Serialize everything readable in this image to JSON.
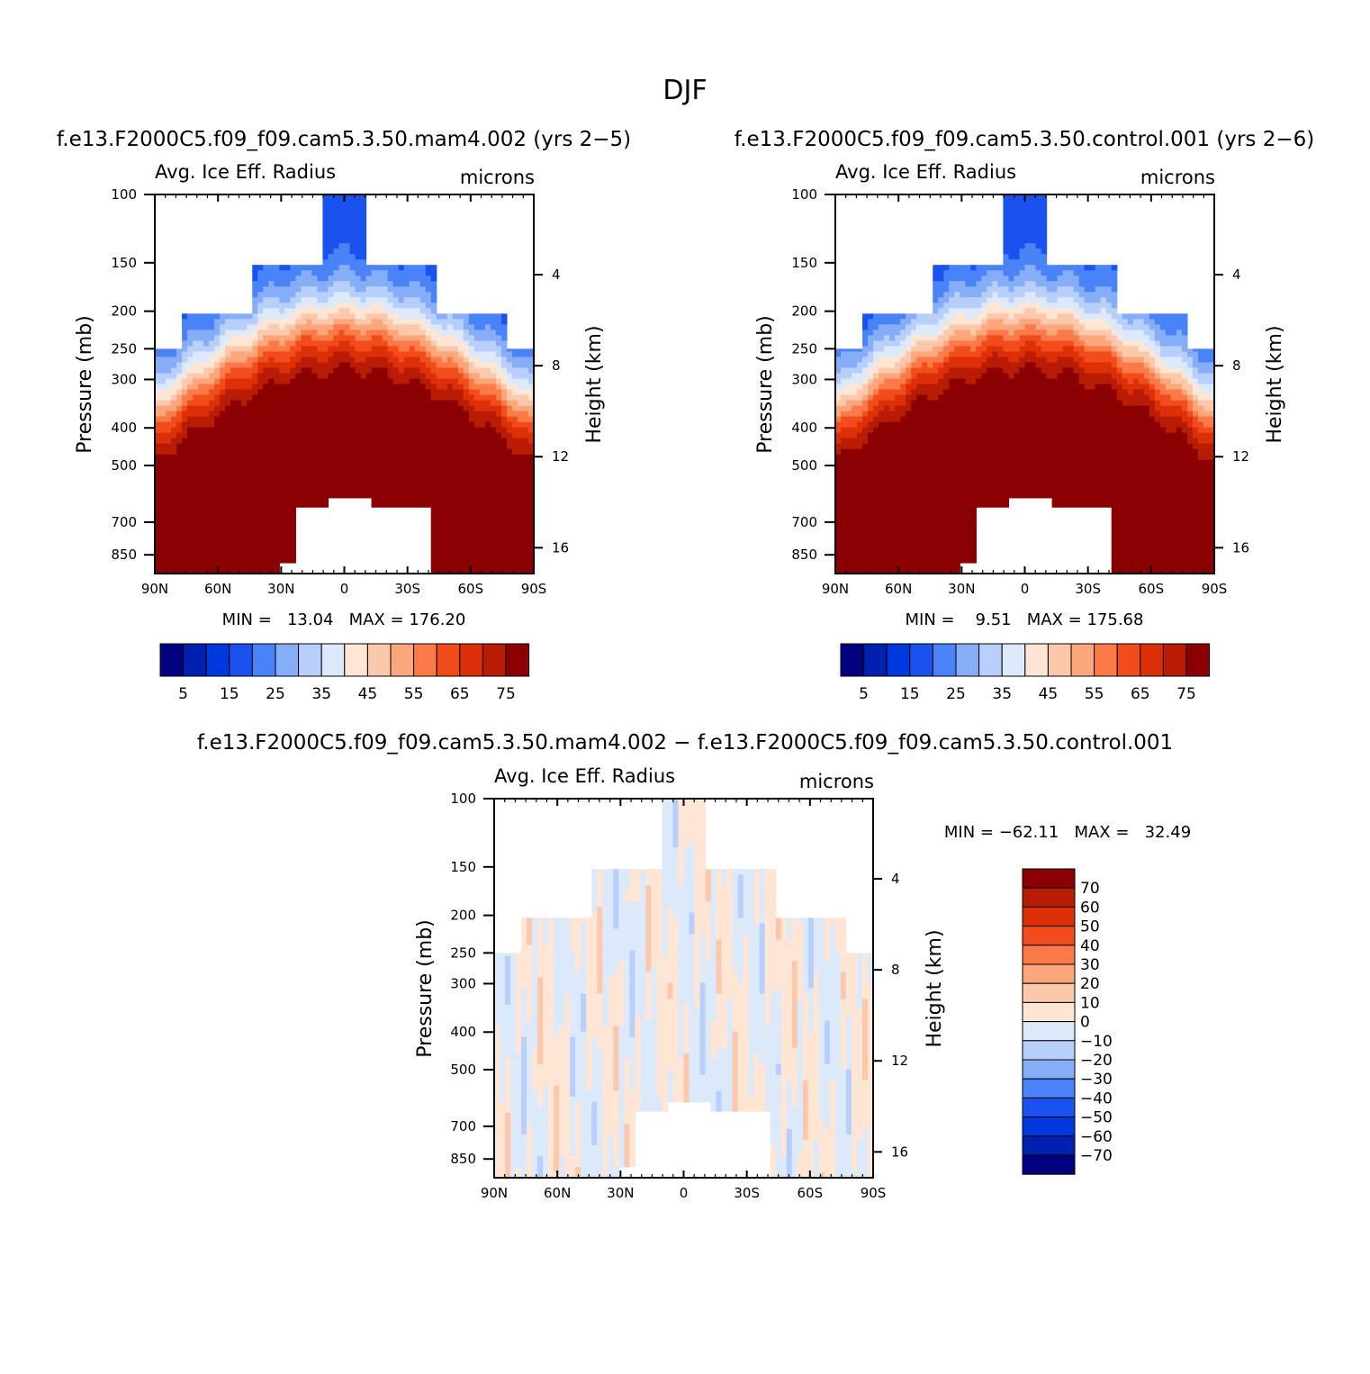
{
  "page_title": "DJF",
  "panels": [
    {
      "id": "p1",
      "case_title": "f.e13.F2000C5.f09_f09.cam5.3.50.mam4.002 (yrs 2−5)",
      "variable": "Avg. Ice Eff. Radius",
      "units": "microns",
      "ylabel": "Pressure (mb)",
      "y2label": "Height (km)",
      "stats": "MIN =   13.04   MAX = 176.20"
    },
    {
      "id": "p2",
      "case_title": "f.e13.F2000C5.f09_f09.cam5.3.50.control.001 (yrs 2−6)",
      "variable": "Avg. Ice Eff. Radius",
      "units": "microns",
      "ylabel": "Pressure (mb)",
      "y2label": "Height (km)",
      "stats": "MIN =    9.51   MAX = 175.68"
    },
    {
      "id": "p3",
      "case_title": "f.e13.F2000C5.f09_f09.cam5.3.50.mam4.002 − f.e13.F2000C5.f09_f09.cam5.3.50.control.001",
      "variable": "Avg. Ice Eff. Radius",
      "units": "microns",
      "ylabel": "Pressure (mb)",
      "y2label": "Height (km)",
      "stats": "MIN = −62.11   MAX =   32.49"
    }
  ],
  "axes": {
    "x_ticks": [
      "90N",
      "60N",
      "30N",
      "0",
      "30S",
      "60S",
      "90S"
    ],
    "p_ticks": [
      "100",
      "150",
      "200",
      "250",
      "300",
      "400",
      "500",
      "700",
      "850"
    ],
    "z_ticks": [
      "16",
      "12",
      "8",
      "4"
    ]
  },
  "colorbar_field": {
    "labels": [
      "5",
      "15",
      "25",
      "35",
      "45",
      "55",
      "65",
      "75"
    ],
    "colors": [
      "#000080",
      "#0020b0",
      "#0038e0",
      "#1a52f0",
      "#4a82f8",
      "#86aef8",
      "#b8cffc",
      "#dce9fb",
      "#ffe6d4",
      "#fcc8ab",
      "#fca67c",
      "#fc7a48",
      "#f24c1c",
      "#de3008",
      "#b81c04",
      "#8b0000"
    ]
  },
  "colorbar_diff": {
    "labels": [
      "70",
      "60",
      "50",
      "40",
      "30",
      "20",
      "10",
      "0",
      "−10",
      "−20",
      "−30",
      "−40",
      "−50",
      "−60",
      "−70"
    ],
    "colors": [
      "#8b0000",
      "#b81c04",
      "#de3008",
      "#f24c1c",
      "#fc7a48",
      "#fca67c",
      "#fcc8ab",
      "#ffe6d4",
      "#dce9fb",
      "#b8cffc",
      "#86aef8",
      "#4a82f8",
      "#1a52f0",
      "#0038e0",
      "#0020b0",
      "#000080"
    ]
  },
  "chart_data": [
    {
      "type": "heatmap",
      "title": "f.e13.F2000C5.f09_f09.cam5.3.50.mam4.002 (yrs 2−5)",
      "subtitle": "Avg. Ice Eff. Radius",
      "units": "microns",
      "xlabel": "",
      "ylabel": "Pressure (mb)",
      "y2label": "Height (km)",
      "x_ticks": [
        "90N",
        "60N",
        "30N",
        "0",
        "30S",
        "60S",
        "90S"
      ],
      "y_ticks": [
        100,
        150,
        200,
        250,
        300,
        400,
        500,
        700,
        850
      ],
      "y2_ticks": [
        16,
        12,
        8,
        4
      ],
      "levels": [
        5,
        10,
        15,
        20,
        25,
        30,
        35,
        40,
        45,
        50,
        55,
        60,
        65,
        70,
        75
      ],
      "min": 13.04,
      "max": 176.2
    },
    {
      "type": "heatmap",
      "title": "f.e13.F2000C5.f09_f09.cam5.3.50.control.001 (yrs 2−6)",
      "subtitle": "Avg. Ice Eff. Radius",
      "units": "microns",
      "xlabel": "",
      "ylabel": "Pressure (mb)",
      "y2label": "Height (km)",
      "x_ticks": [
        "90N",
        "60N",
        "30N",
        "0",
        "30S",
        "60S",
        "90S"
      ],
      "y_ticks": [
        100,
        150,
        200,
        250,
        300,
        400,
        500,
        700,
        850
      ],
      "y2_ticks": [
        16,
        12,
        8,
        4
      ],
      "levels": [
        5,
        10,
        15,
        20,
        25,
        30,
        35,
        40,
        45,
        50,
        55,
        60,
        65,
        70,
        75
      ],
      "min": 9.51,
      "max": 175.68
    },
    {
      "type": "heatmap",
      "title": "f.e13.F2000C5.f09_f09.cam5.3.50.mam4.002 − f.e13.F2000C5.f09_f09.cam5.3.50.control.001",
      "subtitle": "Avg. Ice Eff. Radius",
      "units": "microns",
      "xlabel": "",
      "ylabel": "Pressure (mb)",
      "y2label": "Height (km)",
      "x_ticks": [
        "90N",
        "60N",
        "30N",
        "0",
        "30S",
        "60S",
        "90S"
      ],
      "y_ticks": [
        100,
        150,
        200,
        250,
        300,
        400,
        500,
        700,
        850
      ],
      "y2_ticks": [
        16,
        12,
        8,
        4
      ],
      "levels": [
        -70,
        -60,
        -50,
        -40,
        -30,
        -20,
        -10,
        0,
        10,
        20,
        30,
        40,
        50,
        60,
        70
      ],
      "min": -62.11,
      "max": 32.49
    }
  ]
}
